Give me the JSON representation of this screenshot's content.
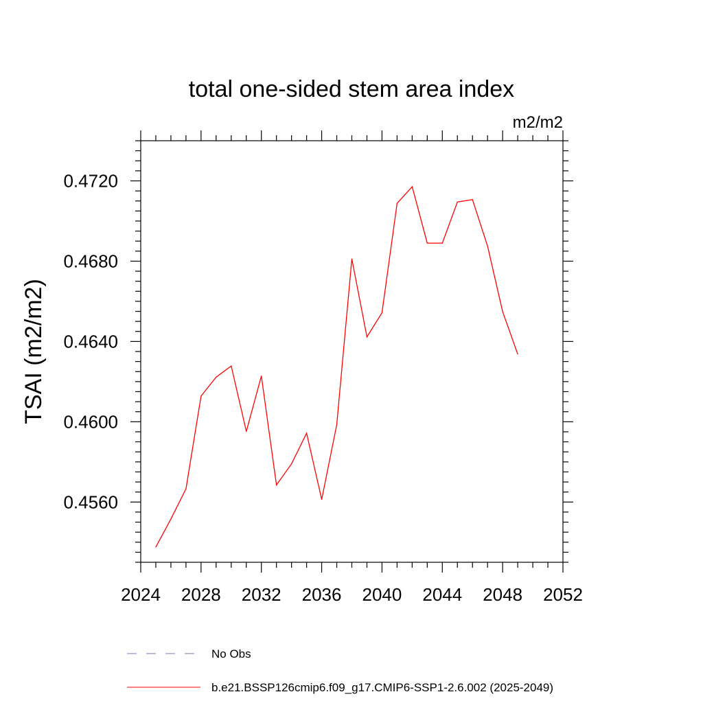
{
  "chart_data": {
    "type": "line",
    "title": "total one-sided stem area index",
    "units_label": "m2/m2",
    "ylabel": "TSAI  (m2/m2)",
    "xlabel": "",
    "xlim": [
      2024,
      2052
    ],
    "ylim": [
      0.453,
      0.474
    ],
    "x_ticks": [
      2024,
      2028,
      2032,
      2036,
      2040,
      2044,
      2048,
      2052
    ],
    "x_tick_labels": [
      "2024",
      "2028",
      "2032",
      "2036",
      "2040",
      "2044",
      "2048",
      "2052"
    ],
    "y_ticks": [
      0.456,
      0.46,
      0.464,
      0.468,
      0.472
    ],
    "y_tick_labels": [
      "0.4560",
      "0.4600",
      "0.4640",
      "0.4680",
      "0.4720"
    ],
    "grid": false,
    "legend_position": "bottom",
    "series": [
      {
        "name": "b.e21.BSSP126cmip6.f09_g17.CMIP6-SSP1-2.6.002 (2025-2049)",
        "color": "#ff0000",
        "style": "solid",
        "x": [
          2025,
          2026,
          2027,
          2028,
          2029,
          2030,
          2031,
          2032,
          2033,
          2034,
          2035,
          2036,
          2037,
          2038,
          2039,
          2040,
          2041,
          2042,
          2043,
          2044,
          2045,
          2046,
          2047,
          2048,
          2049
        ],
        "values": [
          0.45376,
          0.45515,
          0.45666,
          0.46128,
          0.46222,
          0.46278,
          0.45952,
          0.46228,
          0.45685,
          0.4579,
          0.45943,
          0.45613,
          0.45985,
          0.46811,
          0.46423,
          0.46543,
          0.47088,
          0.47171,
          0.4689,
          0.4689,
          0.47095,
          0.47107,
          0.46875,
          0.46549,
          0.46337
        ]
      }
    ],
    "legend": [
      {
        "label": "No Obs",
        "color": "#7777bb",
        "style": "dashed"
      },
      {
        "label": "b.e21.BSSP126cmip6.f09_g17.CMIP6-SSP1-2.6.002 (2025-2049)",
        "color": "#ff0000",
        "style": "solid"
      }
    ]
  }
}
